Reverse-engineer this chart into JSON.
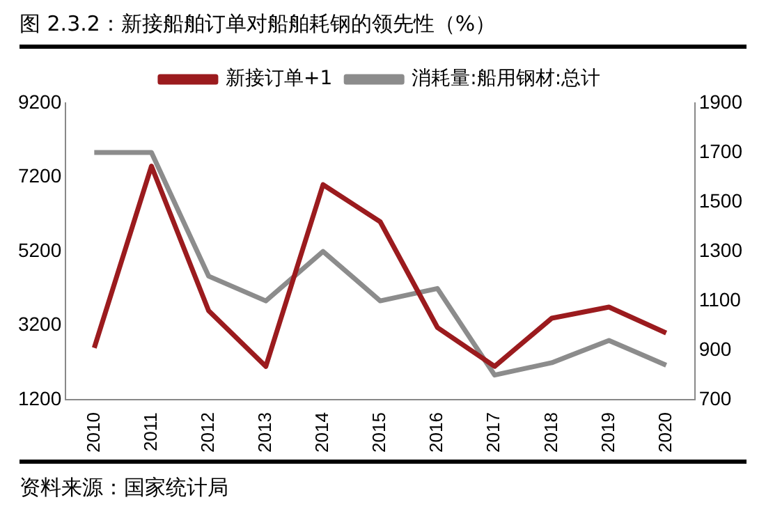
{
  "chart_data": {
    "type": "line",
    "title": "图 2.3.2：新接船舶订单对船舶耗钢的领先性（%）",
    "annotations": [
      "资料来源：国家统计局"
    ],
    "categories": [
      "2010",
      "2011",
      "2012",
      "2013",
      "2014",
      "2015",
      "2016",
      "2017",
      "2018",
      "2019",
      "2020"
    ],
    "series": [
      {
        "name": "新接订单+1",
        "color": "#9b1b1e",
        "values": [
          2600,
          7500,
          3600,
          2100,
          7000,
          6000,
          3150,
          2100,
          3400,
          3700,
          3000
        ]
      },
      {
        "name": "消耗量:船用钢材:总计",
        "color": "#8c8c8c",
        "axis": "y2",
        "values": [
          1700,
          1700,
          1200,
          1100,
          1300,
          1100,
          1150,
          800,
          850,
          940,
          840
        ]
      }
    ],
    "ylim": [
      1200,
      9200
    ],
    "yticks": [
      1200,
      3200,
      5200,
      7200,
      9200
    ],
    "y2lim": [
      700,
      1900
    ],
    "y2ticks": [
      700,
      900,
      1100,
      1300,
      1500,
      1700,
      1900
    ],
    "grid": false,
    "legend": "top",
    "marker": "none",
    "line_style": "solid"
  }
}
